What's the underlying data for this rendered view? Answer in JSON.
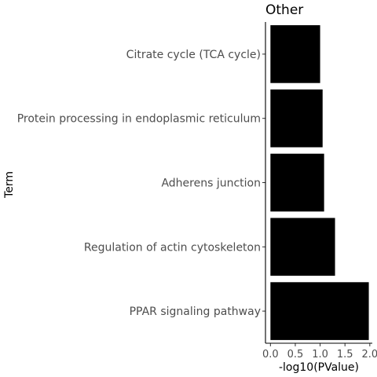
{
  "chart_data": {
    "type": "bar",
    "orientation": "horizontal",
    "title": "Other",
    "xlabel": "-log10(PValue)",
    "ylabel": "Term",
    "categories": [
      "Citrate cycle (TCA cycle)",
      "Protein processing in endoplasmic reticulum",
      "Adherens junction",
      "Regulation of actin cytoskeleton",
      "PPAR signaling pathway"
    ],
    "values": [
      1.0,
      1.05,
      1.08,
      1.3,
      1.98
    ],
    "xlim": [
      -0.1,
      2.05
    ],
    "xticks": [
      "0.0",
      "0.5",
      "1.0",
      "1.5",
      "2.0"
    ],
    "xtick_values": [
      0.0,
      0.5,
      1.0,
      1.5,
      2.0
    ],
    "bar_color": "#000000",
    "grid": false,
    "legend": "none"
  }
}
